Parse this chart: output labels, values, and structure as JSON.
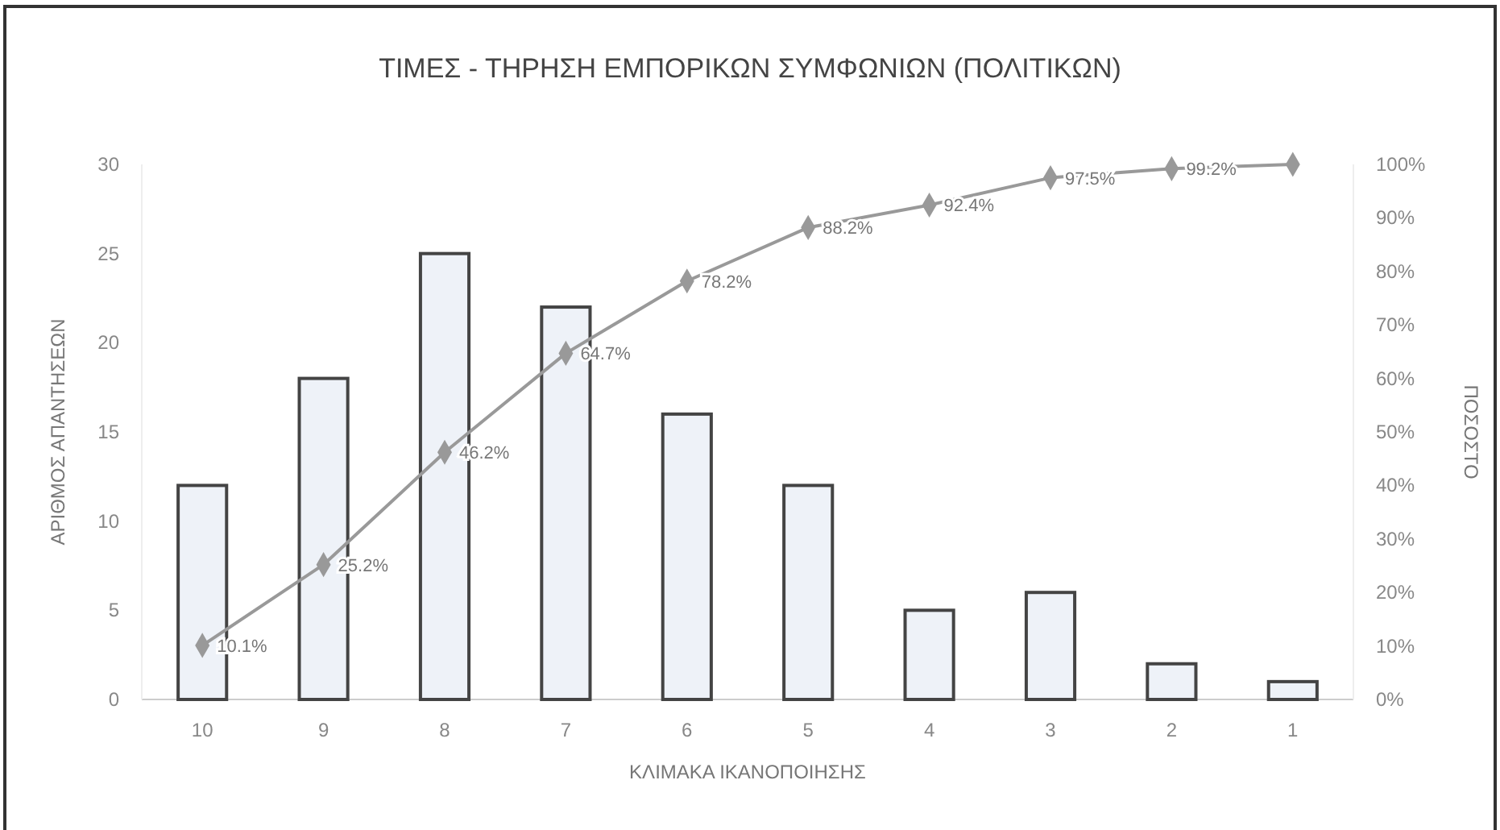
{
  "chart_data": {
    "type": "bar",
    "title": "ΤΙΜΕΣ - ΤΗΡΗΣΗ ΕΜΠΟΡΙΚΩΝ ΣΥΜΦΩΝΙΩΝ (ΠΟΛΙΤΙΚΩΝ)",
    "xlabel": "ΚΛΙΜΑΚΑ ΙΚΑΝΟΠΟΙΗΣΗΣ",
    "ylabel": "ΑΡΙΘΜΟΣ ΑΠΑΝΤΗΣΕΩΝ",
    "y2label": "ΠΟΣΟΣΤΟ",
    "categories": [
      "10",
      "9",
      "8",
      "7",
      "6",
      "5",
      "4",
      "3",
      "2",
      "1"
    ],
    "series": [
      {
        "color": "#eef2f8",
        "values": [
          12,
          18,
          25,
          22,
          16,
          12,
          5,
          6,
          2,
          1
        ]
      },
      {
        "type": "line",
        "axis": "y2",
        "color": "#999999",
        "marker": "diamond",
        "values": [
          10.1,
          25.2,
          46.2,
          64.7,
          78.2,
          88.2,
          92.4,
          97.5,
          99.2,
          100
        ],
        "value_labels": [
          "10.1%",
          "25.2%",
          "46.2%",
          "64.7%",
          "78.2%",
          "88.2%",
          "92.4%",
          "97.5%",
          "99.2%",
          null
        ]
      }
    ],
    "ylim": [
      0,
      30
    ],
    "yticks": [
      0,
      5,
      10,
      15,
      20,
      25,
      30
    ],
    "y2lim": [
      0,
      100
    ],
    "y2ticks": [
      {
        "value": 0,
        "label": "0%"
      },
      {
        "value": 10,
        "label": "10%"
      },
      {
        "value": 20,
        "label": "20%"
      },
      {
        "value": 30,
        "label": "30%"
      },
      {
        "value": 40,
        "label": "40%"
      },
      {
        "value": 50,
        "label": "50%"
      },
      {
        "value": 60,
        "label": "60%"
      },
      {
        "value": 70,
        "label": "70%"
      },
      {
        "value": 80,
        "label": "80%"
      },
      {
        "value": 90,
        "label": "90%"
      },
      {
        "value": 100,
        "label": "100%"
      }
    ],
    "grid": false
  }
}
